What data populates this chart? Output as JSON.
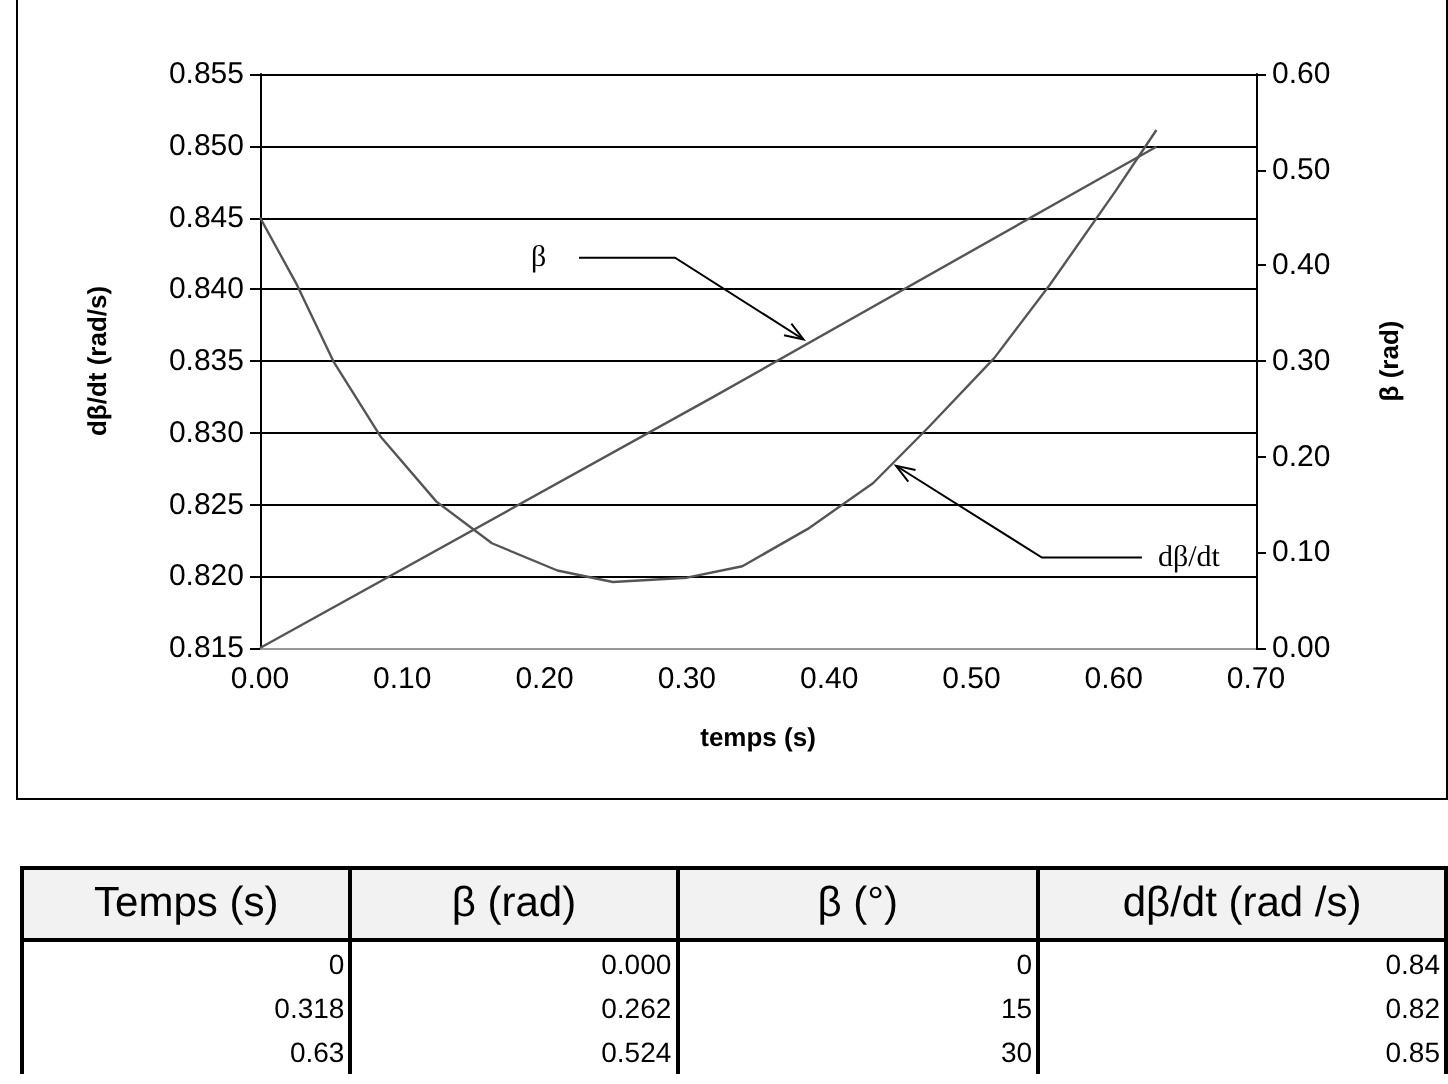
{
  "chart_data": {
    "type": "line",
    "xlabel": "temps (s)",
    "ylabel": "dβ/dt (rad/s)",
    "y2label": "β (rad)",
    "xlim": [
      0,
      0.7
    ],
    "xticks": [
      {
        "value": 0,
        "label": "0.00"
      },
      {
        "value": 0.1,
        "label": "0.10"
      },
      {
        "value": 0.2,
        "label": "0.20"
      },
      {
        "value": 0.3,
        "label": "0.30"
      },
      {
        "value": 0.4,
        "label": "0.40"
      },
      {
        "value": 0.5,
        "label": "0.50"
      },
      {
        "value": 0.6,
        "label": "0.60"
      },
      {
        "value": 0.7,
        "label": "0.70"
      }
    ],
    "ylim": [
      0.815,
      0.855
    ],
    "yticks": [
      0.815,
      {
        "value": 0.82,
        "label": "0.820"
      },
      {
        "value": 0.825,
        "label": "0.825"
      },
      {
        "value": 0.83,
        "label": "0.830"
      },
      0.835,
      {
        "value": 0.84,
        "label": "0.840"
      },
      0.845,
      {
        "value": 0.85,
        "label": "0.850"
      },
      0.855
    ],
    "y2lim": [
      0,
      0.6
    ],
    "y2ticks": [
      {
        "value": 0,
        "label": "0.00"
      },
      {
        "value": 0.1,
        "label": "0.10"
      },
      {
        "value": 0.2,
        "label": "0.20"
      },
      {
        "value": 0.3,
        "label": "0.30"
      },
      {
        "value": 0.4,
        "label": "0.40"
      },
      {
        "value": 0.5,
        "label": "0.50"
      },
      {
        "value": 0.6,
        "label": "0.60"
      }
    ],
    "grid": "y",
    "marker": "none",
    "series": [
      {
        "color": "#555555",
        "x": [
          0,
          0.026,
          0.052,
          0.085,
          0.124,
          0.163,
          0.209,
          0.248,
          0.3,
          0.339,
          0.385,
          0.431,
          0.47,
          0.516,
          0.555,
          0.601,
          0.63
        ],
        "values": [
          0.845,
          0.8403,
          0.8349,
          0.8297,
          0.8252,
          0.8223,
          0.8204,
          0.8196,
          0.8199,
          0.8207,
          0.8233,
          0.8265,
          0.8304,
          0.8352,
          0.8403,
          0.8468,
          0.8511
        ]
      },
      {
        "color": "#555555",
        "axis": "y2",
        "x": [
          0,
          0.318,
          0.63
        ],
        "values": [
          0,
          0.262,
          0.524
        ]
      }
    ],
    "annotations": [
      {
        "text": "β",
        "x": 0.382,
        "y": 0.8365
      },
      {
        "text": "dβ/dt",
        "x": 0.447,
        "y": 0.8277
      },
      "Temps (s)",
      "β (rad)",
      "β (°)",
      "dβ/dt (rad /s)",
      "0",
      "0.000",
      "0",
      "0.84",
      "0.318",
      "0.262",
      "15",
      "0.82",
      "0.63",
      "0.524",
      "30",
      "0.85"
    ]
  }
}
